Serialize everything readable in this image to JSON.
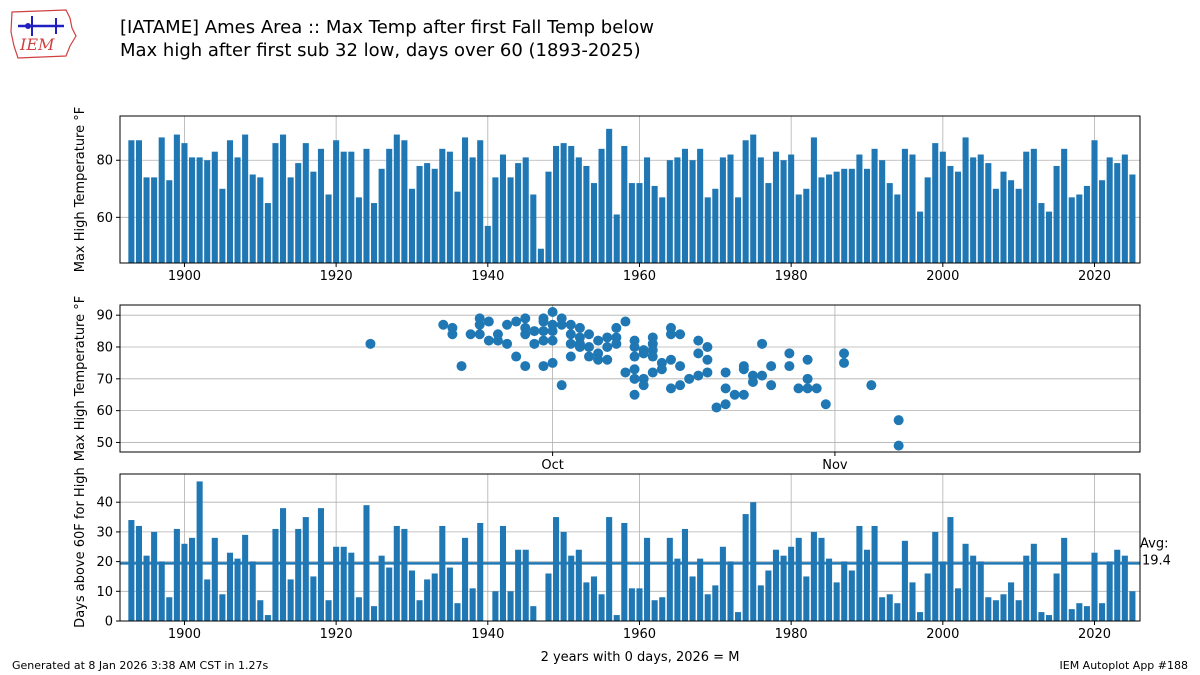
{
  "logo": {
    "text": "IEM"
  },
  "header": {
    "title_line1": "[IATAME] Ames Area :: Max Temp after first Fall Temp below",
    "title_line2": "Max high after first sub 32 low, days over 60 (1893-2025)"
  },
  "footer": {
    "generated": "Generated at 8 Jan 2026 3:38 AM CST in 1.27s",
    "app": "IEM Autoplot App #188"
  },
  "colors": {
    "bar": "#1f77b4",
    "grid": "#b0b0b0"
  },
  "chart_data": [
    {
      "type": "bar",
      "id": "max-high-by-year",
      "ylabel": "Max High Temperature °F",
      "xlim": [
        1891.5,
        2026.0
      ],
      "ylim": [
        44,
        95.5
      ],
      "xticks": [
        1900,
        1920,
        1940,
        1960,
        1980,
        2000,
        2020
      ],
      "yticks": [
        60,
        80
      ],
      "grid": true,
      "years": [
        1893,
        1894,
        1895,
        1896,
        1897,
        1898,
        1899,
        1900,
        1901,
        1902,
        1903,
        1904,
        1905,
        1906,
        1907,
        1908,
        1909,
        1910,
        1911,
        1912,
        1913,
        1914,
        1915,
        1916,
        1917,
        1918,
        1919,
        1920,
        1921,
        1922,
        1923,
        1924,
        1925,
        1926,
        1927,
        1928,
        1929,
        1930,
        1931,
        1932,
        1933,
        1934,
        1935,
        1936,
        1937,
        1938,
        1939,
        1940,
        1941,
        1942,
        1943,
        1944,
        1945,
        1946,
        1947,
        1948,
        1949,
        1950,
        1951,
        1952,
        1953,
        1954,
        1955,
        1956,
        1957,
        1958,
        1959,
        1960,
        1961,
        1962,
        1963,
        1964,
        1965,
        1966,
        1967,
        1968,
        1969,
        1970,
        1971,
        1972,
        1973,
        1974,
        1975,
        1976,
        1977,
        1978,
        1979,
        1980,
        1981,
        1982,
        1983,
        1984,
        1985,
        1986,
        1987,
        1988,
        1989,
        1990,
        1991,
        1992,
        1993,
        1994,
        1995,
        1996,
        1997,
        1998,
        1999,
        2000,
        2001,
        2002,
        2003,
        2004,
        2005,
        2006,
        2007,
        2008,
        2009,
        2010,
        2011,
        2012,
        2013,
        2014,
        2015,
        2016,
        2017,
        2018,
        2019,
        2020,
        2021,
        2022,
        2023,
        2024,
        2025
      ],
      "values": [
        87,
        87,
        74,
        74,
        88,
        73,
        89,
        86,
        81,
        81,
        80,
        83,
        70,
        87,
        81,
        89,
        75,
        74,
        65,
        86,
        89,
        74,
        79,
        86,
        76,
        84,
        68,
        87,
        83,
        83,
        67,
        84,
        65,
        77,
        84,
        89,
        87,
        70,
        78,
        79,
        77,
        84,
        83,
        69,
        88,
        81,
        87,
        57,
        74,
        82,
        74,
        79,
        81,
        68,
        49,
        76,
        85,
        86,
        85,
        81,
        78,
        72,
        84,
        91,
        61,
        85,
        72,
        72,
        81,
        71,
        67,
        80,
        81,
        84,
        80,
        84,
        67,
        70,
        81,
        82,
        67,
        87,
        89,
        81,
        72,
        83,
        80,
        82,
        68,
        70,
        88,
        74,
        75,
        76,
        77,
        77,
        82,
        77,
        84,
        80,
        72,
        68,
        84,
        82,
        62,
        74,
        86,
        83,
        78,
        76,
        88,
        81,
        82,
        79,
        70,
        76,
        73,
        70,
        83,
        84,
        65,
        62,
        78,
        84,
        67,
        68,
        71,
        87,
        73,
        81,
        79,
        82,
        75
      ]
    },
    {
      "type": "scatter",
      "id": "max-high-by-date",
      "ylabel": "Max High Temperature °F",
      "x_unit": "day of year (Oct 1 = 274)",
      "xlim": [
        226.5,
        338.5
      ],
      "ylim": [
        47,
        93.2
      ],
      "xticks": [
        {
          "value": 274,
          "label": "Oct"
        },
        {
          "value": 305,
          "label": "Nov"
        }
      ],
      "yticks": [
        50,
        60,
        70,
        80,
        90
      ],
      "grid": true,
      "points": [
        [
          254,
          81
        ],
        [
          262,
          87
        ],
        [
          263,
          86
        ],
        [
          263,
          84
        ],
        [
          264,
          74
        ],
        [
          265,
          84
        ],
        [
          266,
          84
        ],
        [
          266,
          87
        ],
        [
          266,
          89
        ],
        [
          267,
          88
        ],
        [
          267,
          82
        ],
        [
          268,
          84
        ],
        [
          268,
          82
        ],
        [
          269,
          81
        ],
        [
          269,
          87
        ],
        [
          270,
          77
        ],
        [
          270,
          88
        ],
        [
          271,
          84
        ],
        [
          271,
          86
        ],
        [
          271,
          89
        ],
        [
          271,
          74
        ],
        [
          272,
          81
        ],
        [
          272,
          85
        ],
        [
          273,
          89
        ],
        [
          273,
          88
        ],
        [
          273,
          82
        ],
        [
          273,
          85
        ],
        [
          274,
          91
        ],
        [
          274,
          87
        ],
        [
          274,
          85
        ],
        [
          274,
          82
        ],
        [
          274,
          75
        ],
        [
          273,
          74
        ],
        [
          275,
          89
        ],
        [
          275,
          87
        ],
        [
          275,
          68
        ],
        [
          276,
          87
        ],
        [
          276,
          84
        ],
        [
          276,
          81
        ],
        [
          276,
          77
        ],
        [
          277,
          86
        ],
        [
          277,
          83
        ],
        [
          277,
          81
        ],
        [
          277,
          80
        ],
        [
          278,
          84
        ],
        [
          278,
          80
        ],
        [
          278,
          77
        ],
        [
          279,
          82
        ],
        [
          279,
          78
        ],
        [
          279,
          76
        ],
        [
          280,
          83
        ],
        [
          280,
          80
        ],
        [
          280,
          76
        ],
        [
          281,
          86
        ],
        [
          281,
          83
        ],
        [
          281,
          81
        ],
        [
          282,
          88
        ],
        [
          282,
          72
        ],
        [
          283,
          82
        ],
        [
          283,
          80
        ],
        [
          283,
          77
        ],
        [
          283,
          73
        ],
        [
          283,
          70
        ],
        [
          283,
          65
        ],
        [
          284,
          79
        ],
        [
          284,
          78
        ],
        [
          284,
          70
        ],
        [
          284,
          68
        ],
        [
          285,
          83
        ],
        [
          285,
          81
        ],
        [
          285,
          79
        ],
        [
          285,
          77
        ],
        [
          285,
          72
        ],
        [
          286,
          75
        ],
        [
          286,
          73
        ],
        [
          287,
          86
        ],
        [
          287,
          84
        ],
        [
          287,
          76
        ],
        [
          287,
          67
        ],
        [
          288,
          84
        ],
        [
          288,
          74
        ],
        [
          288,
          68
        ],
        [
          289,
          70
        ],
        [
          290,
          82
        ],
        [
          290,
          78
        ],
        [
          290,
          71
        ],
        [
          291,
          80
        ],
        [
          291,
          76
        ],
        [
          291,
          72
        ],
        [
          292,
          61
        ],
        [
          293,
          72
        ],
        [
          293,
          67
        ],
        [
          293,
          62
        ],
        [
          294,
          65
        ],
        [
          295,
          74
        ],
        [
          295,
          73
        ],
        [
          295,
          65
        ],
        [
          296,
          71
        ],
        [
          296,
          69
        ],
        [
          297,
          81
        ],
        [
          297,
          71
        ],
        [
          298,
          74
        ],
        [
          298,
          68
        ],
        [
          300,
          78
        ],
        [
          300,
          74
        ],
        [
          301,
          67
        ],
        [
          302,
          76
        ],
        [
          302,
          70
        ],
        [
          302,
          67
        ],
        [
          303,
          67
        ],
        [
          304,
          62
        ],
        [
          306,
          78
        ],
        [
          306,
          75
        ],
        [
          309,
          68
        ],
        [
          312,
          57
        ],
        [
          312,
          49
        ]
      ]
    },
    {
      "type": "bar",
      "id": "days-above-60",
      "ylabel": "Days above 60F for High",
      "xlabel": "2 years with 0 days, 2026 = M",
      "xlim": [
        1891.5,
        2026.0
      ],
      "ylim": [
        0,
        49.5
      ],
      "xticks": [
        1900,
        1920,
        1940,
        1960,
        1980,
        2000,
        2020
      ],
      "yticks": [
        0,
        10,
        20,
        30,
        40
      ],
      "grid": true,
      "average": 19.4,
      "average_label": "Avg:",
      "average_value_text": "19.4",
      "years": [
        1893,
        1894,
        1895,
        1896,
        1897,
        1898,
        1899,
        1900,
        1901,
        1902,
        1903,
        1904,
        1905,
        1906,
        1907,
        1908,
        1909,
        1910,
        1911,
        1912,
        1913,
        1914,
        1915,
        1916,
        1917,
        1918,
        1919,
        1920,
        1921,
        1922,
        1923,
        1924,
        1925,
        1926,
        1927,
        1928,
        1929,
        1930,
        1931,
        1932,
        1933,
        1934,
        1935,
        1936,
        1937,
        1938,
        1939,
        1940,
        1941,
        1942,
        1943,
        1944,
        1945,
        1946,
        1947,
        1948,
        1949,
        1950,
        1951,
        1952,
        1953,
        1954,
        1955,
        1956,
        1957,
        1958,
        1959,
        1960,
        1961,
        1962,
        1963,
        1964,
        1965,
        1966,
        1967,
        1968,
        1969,
        1970,
        1971,
        1972,
        1973,
        1974,
        1975,
        1976,
        1977,
        1978,
        1979,
        1980,
        1981,
        1982,
        1983,
        1984,
        1985,
        1986,
        1987,
        1988,
        1989,
        1990,
        1991,
        1992,
        1993,
        1994,
        1995,
        1996,
        1997,
        1998,
        1999,
        2000,
        2001,
        2002,
        2003,
        2004,
        2005,
        2006,
        2007,
        2008,
        2009,
        2010,
        2011,
        2012,
        2013,
        2014,
        2015,
        2016,
        2017,
        2018,
        2019,
        2020,
        2021,
        2022,
        2023,
        2024,
        2025
      ],
      "values": [
        34,
        32,
        22,
        30,
        20,
        8,
        31,
        26,
        28,
        47,
        14,
        28,
        9,
        23,
        21,
        29,
        20,
        7,
        2,
        31,
        38,
        14,
        31,
        35,
        15,
        38,
        7,
        25,
        25,
        23,
        8,
        39,
        5,
        22,
        18,
        32,
        31,
        17,
        7,
        14,
        16,
        32,
        18,
        6,
        28,
        11,
        33,
        0,
        10,
        32,
        10,
        24,
        24,
        5,
        0,
        16,
        35,
        30,
        22,
        24,
        13,
        15,
        9,
        35,
        2,
        33,
        11,
        11,
        28,
        7,
        8,
        28,
        21,
        31,
        15,
        21,
        9,
        12,
        25,
        20,
        3,
        36,
        40,
        12,
        17,
        24,
        22,
        25,
        28,
        15,
        30,
        28,
        21,
        13,
        20,
        17,
        32,
        24,
        32,
        8,
        9,
        6,
        27,
        13,
        3,
        16,
        30,
        20,
        35,
        11,
        26,
        22,
        20,
        8,
        7,
        9,
        13,
        7,
        22,
        26,
        3,
        2,
        16,
        28,
        4,
        6,
        5,
        23,
        6,
        20,
        24,
        22,
        10
      ]
    }
  ]
}
